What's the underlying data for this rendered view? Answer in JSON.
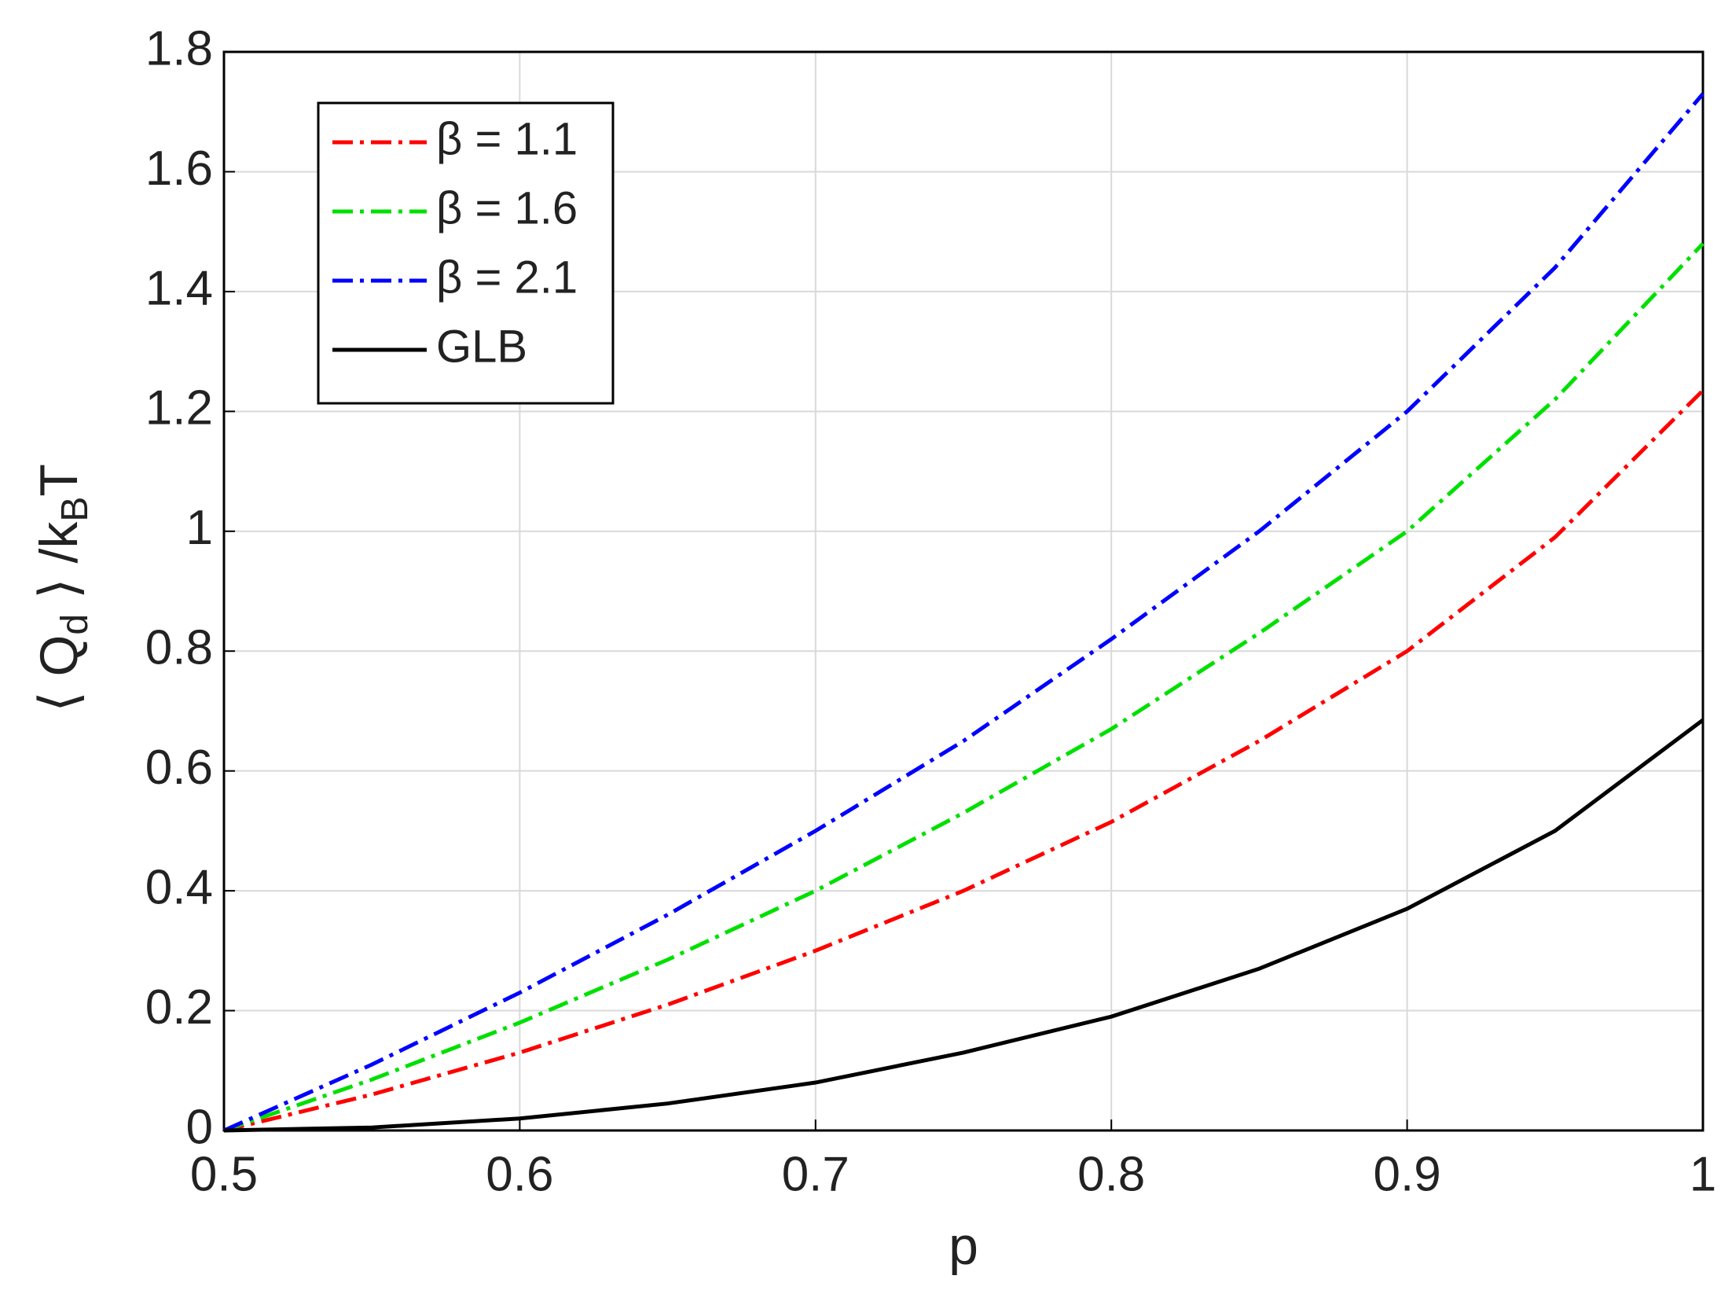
{
  "chart_data": {
    "type": "line",
    "xlabel": "p",
    "ylabel": [
      "⟨ Q",
      "d",
      " ⟩ /k",
      "B",
      "T"
    ],
    "x": [
      0.5,
      0.55,
      0.6,
      0.65,
      0.7,
      0.75,
      0.8,
      0.85,
      0.9,
      0.95,
      1
    ],
    "series": [
      {
        "name": "β = 1.1",
        "color": "#ff0000",
        "dash": true,
        "values": [
          0,
          0.06,
          0.13,
          0.21,
          0.3,
          0.4,
          0.515,
          0.65,
          0.8,
          0.99,
          1.235
        ]
      },
      {
        "name": "β = 1.6",
        "color": "#00e000",
        "dash": true,
        "values": [
          0,
          0.085,
          0.18,
          0.285,
          0.4,
          0.53,
          0.67,
          0.83,
          1.0,
          1.22,
          1.48
        ]
      },
      {
        "name": "β = 2.1",
        "color": "#0000ff",
        "dash": true,
        "values": [
          0,
          0.11,
          0.23,
          0.36,
          0.5,
          0.65,
          0.82,
          1.0,
          1.2,
          1.44,
          1.73
        ]
      },
      {
        "name": "GLB",
        "color": "#000000",
        "dash": false,
        "values": [
          0,
          0.005,
          0.02,
          0.045,
          0.08,
          0.13,
          0.19,
          0.27,
          0.37,
          0.5,
          0.685
        ]
      }
    ],
    "xlim": [
      0.5,
      1
    ],
    "xticks": [
      0.5,
      0.6,
      0.7,
      0.8,
      0.9,
      1
    ],
    "ylim": [
      0,
      1.8
    ],
    "yticks": [
      0,
      0.2,
      0.4,
      0.6,
      0.8,
      1,
      1.2,
      1.4,
      1.6,
      1.8
    ],
    "grid": true,
    "legend": "top-left"
  }
}
